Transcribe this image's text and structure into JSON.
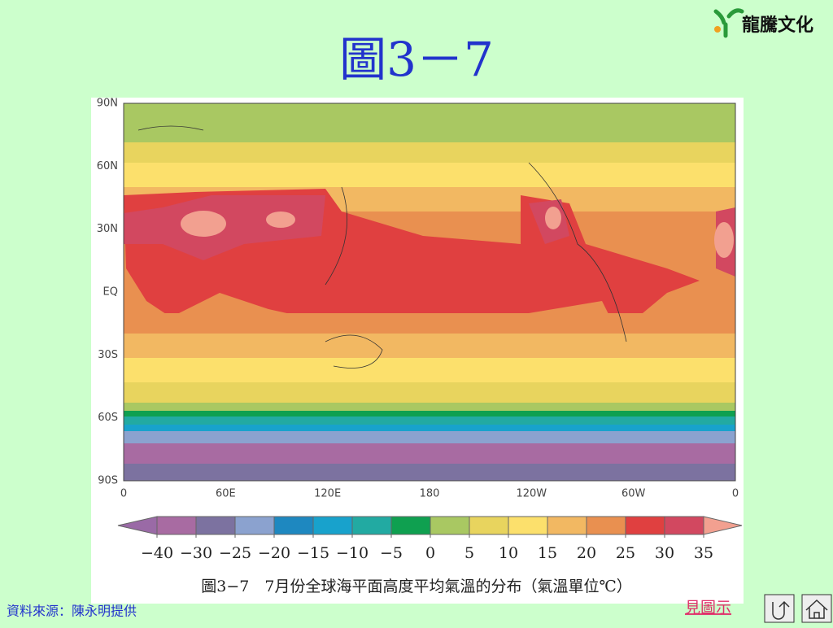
{
  "header": {
    "title": "圖3－7",
    "logo": "龍騰文化"
  },
  "map": {
    "lat_labels": [
      "90N",
      "60N",
      "30N",
      "EQ",
      "30S",
      "60S",
      "90S"
    ],
    "lon_labels": [
      "0",
      "60E",
      "120E",
      "180",
      "120W",
      "60W",
      "0"
    ]
  },
  "colorbar": {
    "colors": [
      "#9a6aa6",
      "#a86ba2",
      "#7c72a0",
      "#8ba2cf",
      "#1e88c0",
      "#18a2cc",
      "#22aaa2",
      "#0fa050",
      "#a9c862",
      "#e8d45e",
      "#fce06c",
      "#f2b862",
      "#e99050",
      "#e04040",
      "#d24860",
      "#f2a090"
    ],
    "ticks": [
      {
        "value": -40,
        "label": "−40"
      },
      {
        "value": -30,
        "label": "−30"
      },
      {
        "value": -25,
        "label": "−25"
      },
      {
        "value": -20,
        "label": "−20"
      },
      {
        "value": -15,
        "label": "−15"
      },
      {
        "value": -10,
        "label": "−10"
      },
      {
        "value": -5,
        "label": "−5"
      },
      0,
      5,
      10,
      15,
      20,
      25,
      30,
      35
    ]
  },
  "caption": "圖3−7　7月份全球海平面高度平均氣溫的分布（氣溫單位℃）",
  "footer": {
    "source": "資料來源：陳永明提供",
    "link": "見圖示"
  }
}
